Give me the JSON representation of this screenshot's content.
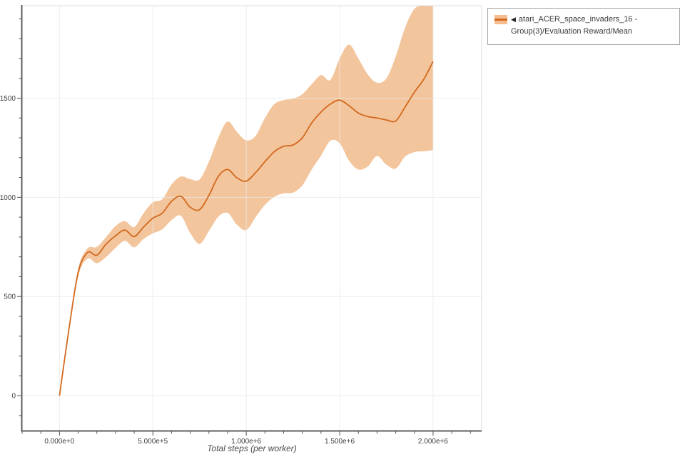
{
  "page": {
    "background": "#ffffff"
  },
  "legend": {
    "marker": "◀",
    "label": "atari_ACER_space_invaders_16 - Group(3)/Evaluation Reward/Mean",
    "swatch_fill": "#f5bd90",
    "swatch_line": "#d2691e",
    "border_color": "#a3a3a3"
  },
  "chart_data": {
    "type": "line",
    "title": "",
    "xlabel": "Total steps (per worker)",
    "ylabel": "",
    "xlim": [
      -200000,
      2260000
    ],
    "ylim": [
      -176,
      1966
    ],
    "x_ticks": [
      0,
      500000,
      1000000,
      1500000,
      2000000
    ],
    "x_ticklabels": [
      "0.000e+0",
      "5.000e+5",
      "1.000e+6",
      "1.500e+6",
      "2.000e+6"
    ],
    "x_minor_step": 100000,
    "y_ticks": [
      0,
      500,
      1000,
      1500
    ],
    "y_ticklabels": [
      "0",
      "500",
      "1000",
      "1500"
    ],
    "y_minor_step": 100,
    "grid": true,
    "legend_position": "top-right",
    "colors": {
      "line": "#d2691e",
      "band": "#f3c59d",
      "grid": "#e9e9e9",
      "spine": "#5e5e5e",
      "frame": "#dcdcdc",
      "tick": "#555555",
      "tick_label": "#3d3d3d"
    },
    "series": [
      {
        "name": "atari_ACER_space_invaders_16 - Group(3)/Evaluation Reward/Mean",
        "x": [
          0,
          50000,
          100000,
          150000,
          200000,
          250000,
          300000,
          350000,
          400000,
          450000,
          500000,
          550000,
          600000,
          650000,
          700000,
          750000,
          800000,
          850000,
          900000,
          950000,
          1000000,
          1050000,
          1100000,
          1150000,
          1200000,
          1250000,
          1300000,
          1350000,
          1400000,
          1450000,
          1500000,
          1550000,
          1600000,
          1650000,
          1700000,
          1750000,
          1800000,
          1850000,
          1900000,
          1950000,
          2000000
        ],
        "mean": [
          0,
          330,
          620,
          722,
          708,
          765,
          806,
          835,
          802,
          850,
          895,
          920,
          980,
          1005,
          950,
          938,
          1010,
          1105,
          1140,
          1098,
          1082,
          1125,
          1180,
          1230,
          1257,
          1264,
          1300,
          1375,
          1430,
          1470,
          1490,
          1462,
          1425,
          1407,
          1400,
          1390,
          1385,
          1455,
          1530,
          1595,
          1685
        ],
        "lower": [
          0,
          318,
          600,
          690,
          668,
          700,
          745,
          781,
          748,
          790,
          818,
          838,
          885,
          907,
          820,
          765,
          830,
          902,
          921,
          862,
          835,
          900,
          962,
          1002,
          1020,
          1024,
          1060,
          1140,
          1210,
          1285,
          1272,
          1185,
          1140,
          1155,
          1208,
          1165,
          1145,
          1205,
          1228,
          1232,
          1238
        ],
        "upper": [
          0,
          342,
          640,
          742,
          750,
          800,
          855,
          880,
          850,
          920,
          975,
          990,
          1065,
          1105,
          1092,
          1090,
          1180,
          1300,
          1382,
          1330,
          1287,
          1310,
          1400,
          1470,
          1490,
          1497,
          1520,
          1570,
          1616,
          1592,
          1700,
          1770,
          1700,
          1620,
          1578,
          1600,
          1710,
          1855,
          1950,
          1966,
          1966
        ]
      }
    ]
  }
}
